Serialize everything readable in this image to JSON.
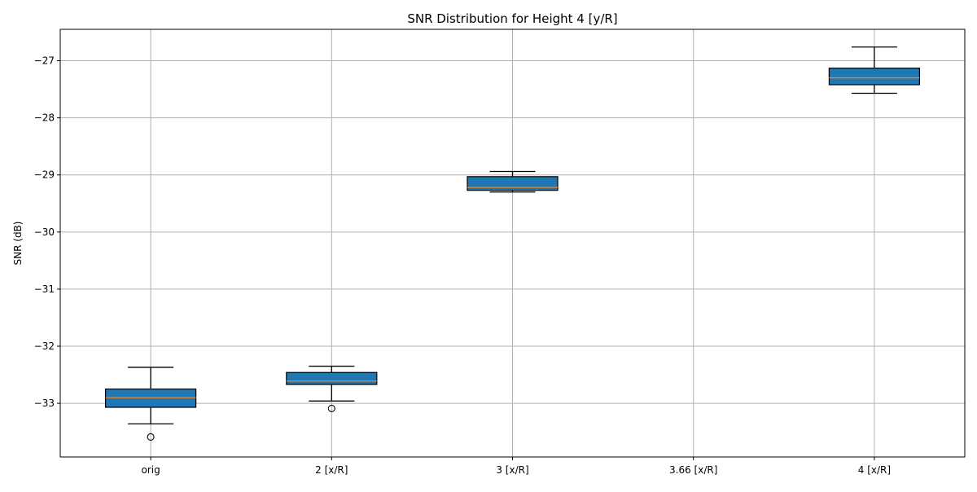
{
  "chart_data": {
    "type": "box",
    "title": "SNR Distribution for Height 4 [y/R]",
    "xlabel": "",
    "ylabel": "SNR (dB)",
    "categories": [
      "orig",
      "2 [x/R]",
      "3 [x/R]",
      "3.66 [x/R]",
      "4 [x/R]"
    ],
    "ylim": [
      -33.94,
      -26.45
    ],
    "yticks": [
      -27,
      -28,
      -29,
      -30,
      -31,
      -32,
      -33
    ],
    "ytick_labels": [
      "−27",
      "−28",
      "−29",
      "−30",
      "−31",
      "−32",
      "−33"
    ],
    "grid": true,
    "box_color": "#1f77b4",
    "median_color": "#ff7f0e",
    "boxes": [
      {
        "category": "orig",
        "whisker_low": -33.36,
        "q1": -33.07,
        "median": -32.9,
        "q3": -32.75,
        "whisker_high": -32.37,
        "outliers": [
          -33.59
        ]
      },
      {
        "category": "2 [x/R]",
        "whisker_low": -32.96,
        "q1": -32.67,
        "median": -32.61,
        "q3": -32.46,
        "whisker_high": -32.35,
        "outliers": [
          -33.09
        ]
      },
      {
        "category": "3 [x/R]",
        "whisker_low": -29.3,
        "q1": -29.27,
        "median": -29.22,
        "q3": -29.03,
        "whisker_high": -28.94,
        "outliers": []
      },
      {
        "category": "3.66 [x/R]",
        "whisker_low": null,
        "q1": null,
        "median": null,
        "q3": null,
        "whisker_high": null,
        "outliers": []
      },
      {
        "category": "4 [x/R]",
        "whisker_low": -27.57,
        "q1": -27.42,
        "median": -27.3,
        "q3": -27.13,
        "whisker_high": -26.76,
        "outliers": []
      }
    ]
  }
}
